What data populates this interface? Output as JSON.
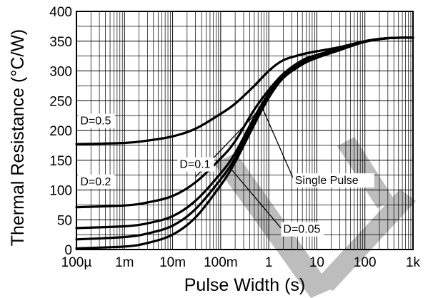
{
  "chart_data": {
    "type": "line",
    "title": "",
    "xlabel": "Pulse Width (s)",
    "ylabel": "Thermal Resistance (°C/W)",
    "x_scale": "log",
    "xlim": [
      0.0001,
      1000
    ],
    "ylim": [
      0,
      400
    ],
    "grid": true,
    "x_ticks": [
      {
        "value": 0.0001,
        "label": "100µ"
      },
      {
        "value": 0.001,
        "label": "1m"
      },
      {
        "value": 0.01,
        "label": "10m"
      },
      {
        "value": 0.1,
        "label": "100m"
      },
      {
        "value": 1,
        "label": "1"
      },
      {
        "value": 10,
        "label": "10"
      },
      {
        "value": 100,
        "label": "100"
      },
      {
        "value": 1000,
        "label": "1k"
      }
    ],
    "y_ticks": [
      {
        "value": 0,
        "label": "0"
      },
      {
        "value": 50,
        "label": "50"
      },
      {
        "value": 100,
        "label": "100"
      },
      {
        "value": 150,
        "label": "150"
      },
      {
        "value": 200,
        "label": "200"
      },
      {
        "value": 250,
        "label": "250"
      },
      {
        "value": 300,
        "label": "300"
      },
      {
        "value": 350,
        "label": "350"
      },
      {
        "value": 400,
        "label": "400"
      }
    ],
    "series": [
      {
        "name": "D=0.5",
        "x": [
          0.0001,
          0.001,
          0.003,
          0.01,
          0.03,
          0.1,
          0.2,
          0.5,
          1,
          2,
          5,
          10,
          30,
          100,
          300,
          1000
        ],
        "values": [
          177,
          179,
          183,
          190,
          203,
          228,
          245,
          275,
          300,
          318,
          328,
          333,
          340,
          350,
          355,
          356
        ]
      },
      {
        "name": "D=0.2",
        "x": [
          0.0001,
          0.001,
          0.003,
          0.01,
          0.03,
          0.1,
          0.2,
          0.5,
          1,
          2,
          5,
          10,
          30,
          100,
          300,
          1000
        ],
        "values": [
          71,
          74,
          79,
          90,
          113,
          153,
          182,
          235,
          268,
          295,
          318,
          327,
          338,
          350,
          355,
          356
        ]
      },
      {
        "name": "D=0.1",
        "x": [
          0.0001,
          0.001,
          0.003,
          0.01,
          0.03,
          0.1,
          0.2,
          0.5,
          1,
          2,
          5,
          10,
          30,
          100,
          300,
          1000
        ],
        "values": [
          36,
          39,
          44,
          56,
          82,
          128,
          162,
          222,
          262,
          292,
          315,
          325,
          337,
          350,
          355,
          356
        ]
      },
      {
        "name": "D=0.05",
        "x": [
          0.0001,
          0.001,
          0.003,
          0.01,
          0.03,
          0.1,
          0.2,
          0.5,
          1,
          2,
          5,
          10,
          30,
          100,
          300,
          1000
        ],
        "values": [
          17,
          21,
          27,
          40,
          68,
          118,
          154,
          216,
          258,
          290,
          313,
          323,
          336,
          349,
          355,
          356
        ]
      },
      {
        "name": "Single Pulse",
        "x": [
          0.0001,
          0.001,
          0.003,
          0.01,
          0.03,
          0.1,
          0.2,
          0.5,
          1,
          2,
          5,
          10,
          30,
          100,
          300,
          1000
        ],
        "values": [
          2,
          5,
          11,
          25,
          54,
          108,
          147,
          210,
          255,
          288,
          311,
          322,
          335,
          349,
          355,
          356
        ]
      }
    ]
  }
}
